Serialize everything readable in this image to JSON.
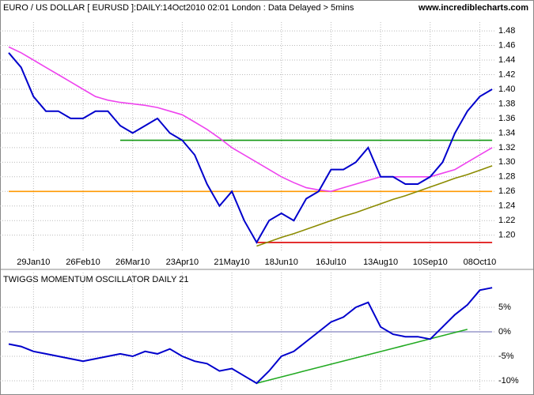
{
  "chart_data": [
    {
      "type": "line",
      "title": "EURO / US DOLLAR [ EURUSD ]:DAILY:14Oct2010 02:01 London : Data Delayed > 5mins",
      "site": "www.incrediblecharts.com",
      "categories": [
        null,
        null,
        "29Jan10",
        null,
        null,
        null,
        "26Feb10",
        null,
        null,
        null,
        "26Mar10",
        null,
        null,
        null,
        "23Apr10",
        null,
        null,
        null,
        "21May10",
        null,
        null,
        null,
        "18Jun10",
        null,
        null,
        null,
        "16Jul10",
        null,
        null,
        null,
        "13Aug10",
        null,
        null,
        null,
        "10Sep10",
        null,
        null,
        null,
        "08Oct10",
        null
      ],
      "ylim": [
        1.178,
        1.492
      ],
      "yticks": [
        {
          "value": 1.2,
          "label": "1.20"
        },
        1.22,
        1.24,
        1.26,
        1.28,
        {
          "value": 1.3,
          "label": "1.30"
        },
        1.32,
        1.34,
        1.36,
        1.38,
        {
          "value": 1.4,
          "label": "1.40"
        },
        1.42,
        1.44,
        1.46,
        1.48
      ],
      "grid": true,
      "series": [
        {
          "color": "#ff9900",
          "values": [
            1.26,
            1.26,
            1.26,
            1.26,
            1.26,
            1.26,
            1.26,
            1.26,
            1.26,
            1.26,
            1.26,
            1.26,
            1.26,
            1.26,
            1.26,
            1.26,
            1.26,
            1.26,
            1.26,
            1.26,
            1.26,
            1.26,
            1.26,
            1.26,
            1.26,
            1.26,
            1.26,
            1.26,
            1.26,
            1.26,
            1.26,
            1.26,
            1.26,
            1.26,
            1.26,
            1.26,
            1.26,
            1.26,
            1.26,
            1.26
          ]
        },
        {
          "color": "#119911",
          "values": [
            null,
            null,
            null,
            null,
            null,
            null,
            null,
            null,
            null,
            1.33,
            1.33,
            1.33,
            1.33,
            1.33,
            1.33,
            1.33,
            1.33,
            1.33,
            1.33,
            1.33,
            1.33,
            1.33,
            1.33,
            1.33,
            1.33,
            1.33,
            1.33,
            1.33,
            1.33,
            1.33,
            1.33,
            1.33,
            1.33,
            1.33,
            1.33,
            1.33,
            1.33,
            1.33,
            1.33,
            1.33
          ]
        },
        {
          "color": "#dd0000",
          "values": [
            null,
            null,
            null,
            null,
            null,
            null,
            null,
            null,
            null,
            null,
            null,
            null,
            null,
            null,
            null,
            null,
            null,
            null,
            null,
            null,
            1.19,
            1.19,
            1.19,
            1.19,
            1.19,
            1.19,
            1.19,
            1.19,
            1.19,
            1.19,
            1.19,
            1.19,
            1.19,
            1.19,
            1.19,
            1.19,
            1.19,
            1.19,
            1.19,
            1.19
          ]
        },
        {
          "color": "#8b8b00",
          "values": [
            null,
            null,
            null,
            null,
            null,
            null,
            null,
            null,
            null,
            null,
            null,
            null,
            null,
            null,
            null,
            null,
            null,
            null,
            null,
            null,
            1.185,
            1.191,
            1.197,
            1.202,
            1.208,
            1.214,
            1.22,
            1.226,
            1.231,
            1.237,
            1.243,
            1.249,
            1.254,
            1.26,
            1.266,
            1.272,
            1.278,
            1.283,
            1.289,
            1.295
          ]
        },
        {
          "color": "#ee44ee",
          "values": [
            1.458,
            1.45,
            1.44,
            1.43,
            1.42,
            1.41,
            1.4,
            1.39,
            1.385,
            1.382,
            1.38,
            1.378,
            1.375,
            1.37,
            1.365,
            1.355,
            1.345,
            1.333,
            1.32,
            1.31,
            1.3,
            1.29,
            1.28,
            1.272,
            1.265,
            1.262,
            1.26,
            1.265,
            1.27,
            1.275,
            1.28,
            1.28,
            1.28,
            1.28,
            1.28,
            1.285,
            1.29,
            1.3,
            1.31,
            1.32
          ]
        },
        {
          "color": "#0000cc",
          "values": [
            1.45,
            1.43,
            1.39,
            1.37,
            1.37,
            1.36,
            1.36,
            1.37,
            1.37,
            1.35,
            1.34,
            1.35,
            1.36,
            1.34,
            1.33,
            1.31,
            1.27,
            1.24,
            1.26,
            1.22,
            1.19,
            1.22,
            1.23,
            1.22,
            1.25,
            1.26,
            1.29,
            1.29,
            1.3,
            1.32,
            1.28,
            1.28,
            1.27,
            1.27,
            1.28,
            1.3,
            1.34,
            1.37,
            1.39,
            1.4
          ]
        }
      ]
    },
    {
      "type": "line",
      "title": "TWIGGS MOMENTUM OSCILLATOR DAILY 21",
      "ylim": [
        -12.1,
        12.1
      ],
      "yticks": [
        {
          "value": 5,
          "label": "5%"
        },
        {
          "value": 0,
          "label": "0%"
        },
        {
          "value": -5,
          "label": "-5%"
        },
        {
          "value": -10,
          "label": "-10%"
        }
      ],
      "grid": true,
      "series": [
        {
          "color": "#9999cc",
          "values": [
            0,
            0,
            0,
            0,
            0,
            0,
            0,
            0,
            0,
            0,
            0,
            0,
            0,
            0,
            0,
            0,
            0,
            0,
            0,
            0,
            0,
            0,
            0,
            0,
            0,
            0,
            0,
            0,
            0,
            0,
            0,
            0,
            0,
            0,
            0,
            0,
            0,
            0,
            0,
            0
          ]
        },
        {
          "color": "#22aa22",
          "values": [
            null,
            null,
            null,
            null,
            null,
            null,
            null,
            null,
            null,
            null,
            null,
            null,
            null,
            null,
            null,
            null,
            null,
            null,
            null,
            null,
            -10.5,
            -9.85,
            -9.21,
            -8.56,
            -7.91,
            -7.26,
            -6.62,
            -5.97,
            -5.32,
            -4.68,
            -4.03,
            -3.38,
            -2.74,
            -2.09,
            -1.44,
            -0.79,
            -0.15,
            0.5,
            null,
            null
          ]
        },
        {
          "color": "#0000cc",
          "values": [
            -2.5,
            -3,
            -4,
            -4.5,
            -5,
            -5.5,
            -6,
            -5.5,
            -5,
            -4.5,
            -5,
            -4,
            -4.5,
            -3.5,
            -5,
            -6,
            -6.5,
            -8,
            -7.5,
            -9,
            -10.5,
            -8,
            -5,
            -4,
            -2,
            0,
            2,
            3,
            5,
            6,
            1,
            -0.5,
            -1,
            -1,
            -1.5,
            1,
            3.5,
            5.5,
            8.5,
            9
          ]
        }
      ]
    }
  ]
}
